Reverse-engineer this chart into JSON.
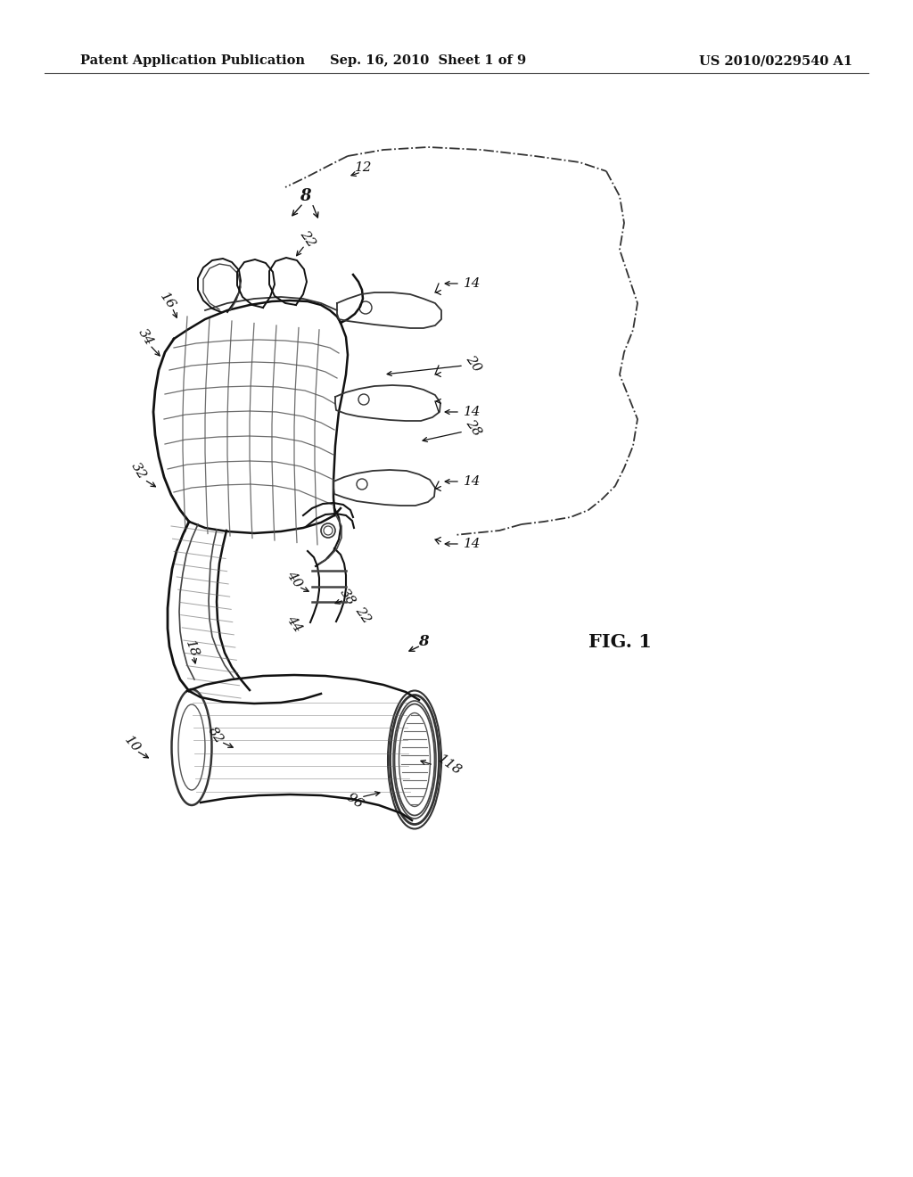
{
  "background_color": "#ffffff",
  "header_left": "Patent Application Publication",
  "header_center": "Sep. 16, 2010  Sheet 1 of 9",
  "header_right": "US 2010/0229540 A1",
  "fig_label": "FIG. 1",
  "header_fontsize": 10.5,
  "fig_label_fontsize": 15,
  "drawing_color": "#1a1a1a",
  "line_width": 1.0
}
